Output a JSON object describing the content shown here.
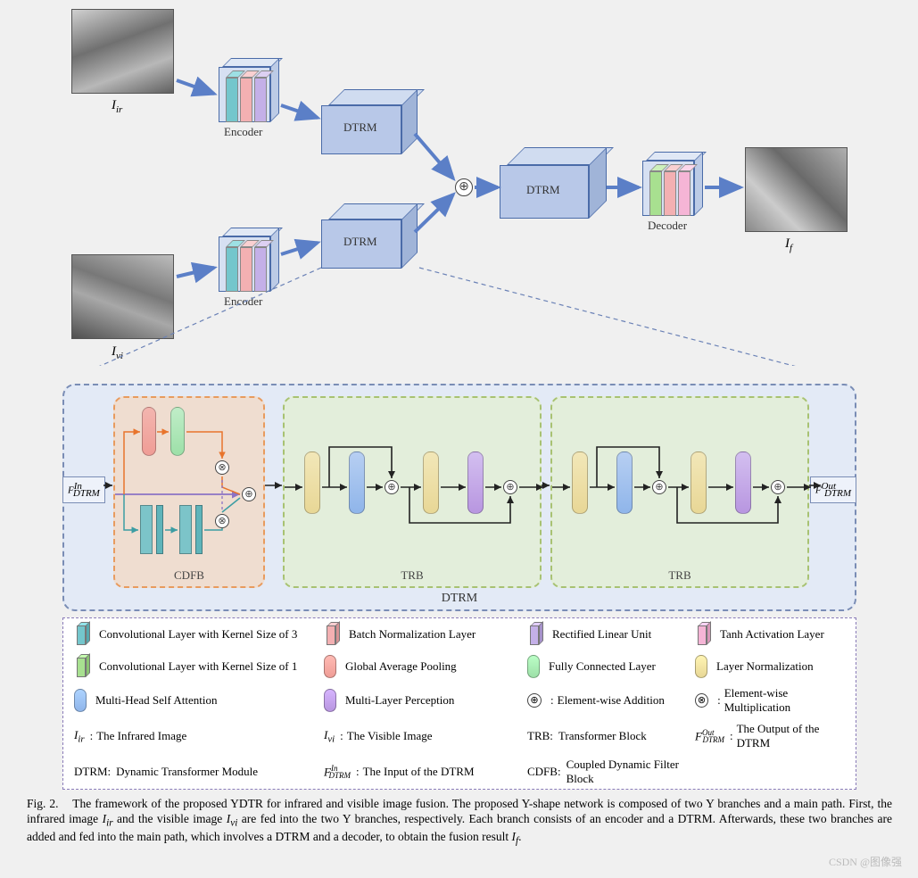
{
  "labels": {
    "I_ir": "I",
    "I_ir_sub": "ir",
    "I_vi": "I",
    "I_vi_sub": "vi",
    "I_f": "I",
    "I_f_sub": "f",
    "encoder": "Encoder",
    "decoder": "Decoder",
    "dtrm": "DTRM",
    "cdfb": "CDFB",
    "trb": "TRB",
    "F_in": "F",
    "F_in_sup": "In",
    "F_in_sub": "DTRM",
    "F_out": "F",
    "F_out_sup": "Out",
    "F_out_sub": "DTRM"
  },
  "colors": {
    "conv3": "#74c6cc",
    "conv1": "#a8e090",
    "bn": "#f3b0b2",
    "relu": "#c4b0e8",
    "tanh": "#f5b5d6",
    "gap": "#ef9d96",
    "fc": "#9de0a8",
    "ln": "#e8d796",
    "mhsa": "#8fb5ea",
    "mlp": "#b896e0",
    "cube": "#b8c8e8",
    "arrow": "#5b7fc7"
  },
  "legend": {
    "row1": [
      {
        "type": "3d",
        "color": "#74c6cc",
        "text": "Convolutional Layer with Kernel Size of 3"
      },
      {
        "type": "3d",
        "color": "#f3b0b2",
        "text": "Batch Normalization Layer"
      },
      {
        "type": "3d",
        "color": "#c4b0e8",
        "text": "Rectified Linear Unit"
      },
      {
        "type": "3d",
        "color": "#f5b5d6",
        "text": "Tanh Activation Layer"
      }
    ],
    "row2": [
      {
        "type": "3d",
        "color": "#a8e090",
        "text": "Convolutional Layer with Kernel Size of 1"
      },
      {
        "type": "pill",
        "color": "#ef9d96",
        "text": "Global Average Pooling"
      },
      {
        "type": "pill",
        "color": "#9de0a8",
        "text": "Fully Connected Layer"
      },
      {
        "type": "pill",
        "color": "#e8d796",
        "text": "Layer Normalization"
      }
    ],
    "row3": [
      {
        "type": "pill",
        "color": "#8fb5ea",
        "text": "Multi-Head Self Attention"
      },
      {
        "type": "pill",
        "color": "#b896e0",
        "text": "Multi-Layer Perception"
      },
      {
        "type": "circle",
        "sym": "⊕",
        "prefix": ":",
        "text": "Element-wise Addition"
      },
      {
        "type": "circle",
        "sym": "⊗",
        "prefix": ":",
        "text": "Element-wise Multiplication"
      }
    ],
    "row4": [
      {
        "type": "sym",
        "sym": "I_ir",
        "prefix": ":",
        "text": "The Infrared Image"
      },
      {
        "type": "sym",
        "sym": "I_vi",
        "prefix": ":",
        "text": "The Visible Image"
      },
      {
        "type": "plain",
        "label": "TRB:",
        "text": "Transformer Block"
      },
      {
        "type": "sym",
        "sym": "F_out",
        "prefix": ":",
        "text": "The  Output of the DTRM"
      }
    ],
    "row5": [
      {
        "type": "plain",
        "label": "DTRM:",
        "text": "Dynamic Transformer Module"
      },
      {
        "type": "sym",
        "sym": "F_in",
        "prefix": ":",
        "text": "The Input of the DTRM"
      },
      {
        "type": "plain",
        "label": "CDFB:",
        "text": "Coupled Dynamic Filter Block"
      },
      {
        "type": "none"
      }
    ]
  },
  "caption": {
    "fignum": "Fig. 2.",
    "body1": "The framework of the proposed YDTR for infrared and visible image fusion. The proposed Y-shape network is composed of two Y branches and a main path. First, the infrared image ",
    "sym1": "I_ir",
    "body2": " and the visible image ",
    "sym2": "I_vi",
    "body3": " are fed into the two Y branches, respectively. Each branch consists of an encoder and a DTRM. Afterwards, these two branches are added and fed into the main path, which involves a DTRM and a decoder, to obtain the fusion result ",
    "sym3": "I_f",
    "body4": "."
  },
  "watermark": "CSDN @图像强"
}
